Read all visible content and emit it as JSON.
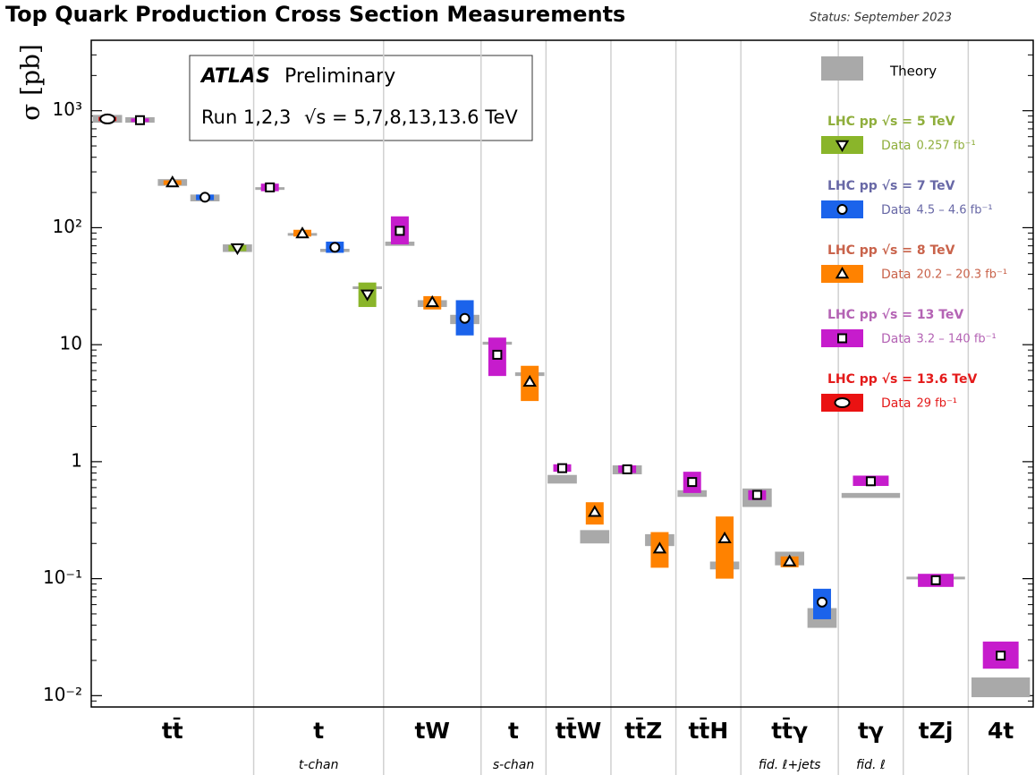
{
  "chart_data": {
    "type": "scatter",
    "title": "Top Quark Production Cross Section Measurements",
    "status": "Status: September 2023",
    "ylabel": "σ [pb]",
    "yscale": "log",
    "ylim": [
      0.008,
      4000
    ],
    "yticks": [
      {
        "value": 1000,
        "label": "10³"
      },
      {
        "value": 100,
        "label": "10²"
      },
      10,
      1,
      {
        "value": 0.1,
        "label": "10⁻¹"
      },
      {
        "value": 0.01,
        "label": "10⁻²"
      }
    ],
    "annotation": {
      "experiment": "ATLAS",
      "label": "Preliminary",
      "run": "Run 1,2,3",
      "energy": "√s = 5,7,8,13,13.6 TeV"
    },
    "theory_label": "Theory",
    "theory_color": "#a9a9a9",
    "series": [
      {
        "name": "LHC pp  √s = 5 TeV",
        "data_label": "Data",
        "lumi": "0.257 fb⁻¹",
        "color": "#8ab52a",
        "text_color": "#8fae3c",
        "marker": "triangle-down"
      },
      {
        "name": "LHC pp  √s = 7 TeV",
        "data_label": "Data",
        "lumi": "4.5 – 4.6 fb⁻¹",
        "color": "#1b63eb",
        "text_color": "#6868a6",
        "marker": "circle"
      },
      {
        "name": "LHC pp  √s = 8 TeV",
        "data_label": "Data",
        "lumi": "20.2 – 20.3 fb⁻¹",
        "color": "#ff8200",
        "text_color": "#c9634b",
        "marker": "triangle-up"
      },
      {
        "name": "LHC pp  √s = 13 TeV",
        "data_label": "Data",
        "lumi": "3.2 – 140 fb⁻¹",
        "color": "#c61ccc",
        "text_color": "#b463b4",
        "marker": "square"
      },
      {
        "name": "LHC pp  √s = 13.6 TeV",
        "data_label": "Data",
        "lumi": "29 fb⁻¹",
        "color": "#ea1212",
        "text_color": "#e41a1a",
        "marker": "ellipse"
      }
    ],
    "groups": [
      {
        "label": "tt̄",
        "points": [
          {
            "series": 4,
            "value": 850,
            "err": [
              815,
              885
            ],
            "theory": [
              790,
              920
            ]
          },
          {
            "series": 3,
            "value": 830,
            "err": [
              800,
              860
            ],
            "theory": [
              790,
              880
            ]
          },
          {
            "series": 2,
            "value": 243,
            "err": [
              232,
              254
            ],
            "theory": [
              228,
              260
            ]
          },
          {
            "series": 1,
            "value": 182,
            "err": [
              172,
              192
            ],
            "theory": [
              168,
              192
            ]
          },
          {
            "series": 0,
            "value": 67,
            "err": [
              63,
              71
            ],
            "theory": [
              62,
              72
            ]
          }
        ]
      },
      {
        "label": "t",
        "sublabel": "t-chan",
        "points": [
          {
            "series": 3,
            "value": 221,
            "err": [
              205,
              238
            ],
            "theory": [
              212,
              222
            ]
          },
          {
            "series": 2,
            "value": 89,
            "err": [
              84,
              96
            ],
            "theory": [
              86,
              90
            ]
          },
          {
            "series": 1,
            "value": 68,
            "err": [
              61,
              76
            ],
            "theory": [
              62,
              66
            ]
          },
          {
            "series": 0,
            "value": 27,
            "err": [
              21,
              34
            ],
            "theory": [
              30,
              31.5
            ]
          }
        ]
      },
      {
        "label": "tW",
        "points": [
          {
            "series": 3,
            "value": 94,
            "err": [
              72,
              125
            ],
            "theory": [
              70,
              76
            ]
          },
          {
            "series": 2,
            "value": 23,
            "err": [
              20,
              26
            ],
            "theory": [
              21,
              24
            ]
          },
          {
            "series": 1,
            "value": 16.8,
            "err": [
              12,
              24
            ],
            "theory": [
              15,
              18
            ]
          }
        ]
      },
      {
        "label": "t",
        "sublabel": "s-chan",
        "points": [
          {
            "series": 3,
            "value": 8.2,
            "err": [
              5.4,
              11.5
            ],
            "theory": [
              10,
              10.6
            ]
          },
          {
            "series": 2,
            "value": 4.8,
            "err": [
              3.3,
              6.6
            ],
            "theory": [
              5.4,
              5.8
            ]
          }
        ]
      },
      {
        "label": "tt̄W",
        "points": [
          {
            "series": 3,
            "value": 0.88,
            "err": [
              0.82,
              0.95
            ],
            "theory": [
              0.65,
              0.77
            ]
          },
          {
            "series": 2,
            "value": 0.37,
            "err": [
              0.29,
              0.45
            ],
            "theory": [
              0.2,
              0.26
            ]
          }
        ]
      },
      {
        "label": "tt̄Z",
        "points": [
          {
            "series": 3,
            "value": 0.86,
            "err": [
              0.8,
              0.93
            ],
            "theory": [
              0.78,
              0.93
            ]
          },
          {
            "series": 2,
            "value": 0.18,
            "err": [
              0.124,
              0.25
            ],
            "theory": [
              0.19,
              0.24
            ]
          }
        ]
      },
      {
        "label": "tt̄H",
        "points": [
          {
            "series": 3,
            "value": 0.67,
            "err": [
              0.54,
              0.82
            ],
            "theory": [
              0.5,
              0.57
            ]
          },
          {
            "series": 2,
            "value": 0.22,
            "err": [
              0.1,
              0.34
            ],
            "theory": [
              0.12,
              0.14
            ]
          }
        ]
      },
      {
        "label": "tt̄γ",
        "sublabel": "fid. ℓ+jets",
        "points": [
          {
            "series": 3,
            "value": 0.52,
            "err": [
              0.47,
              0.57
            ],
            "theory": [
              0.41,
              0.59
            ]
          },
          {
            "series": 2,
            "value": 0.14,
            "err": [
              0.125,
              0.155
            ],
            "theory": [
              0.13,
              0.17
            ]
          },
          {
            "series": 1,
            "value": 0.063,
            "err": [
              0.045,
              0.082
            ],
            "theory": [
              0.038,
              0.056
            ]
          }
        ]
      },
      {
        "label": "tγ",
        "sublabel": "fid. ℓ",
        "points": [
          {
            "series": 3,
            "value": 0.68,
            "err": [
              0.62,
              0.76
            ],
            "theory": [
              0.49,
              0.54
            ]
          }
        ]
      },
      {
        "label": "tZj",
        "points": [
          {
            "series": 3,
            "value": 0.097,
            "err": [
              0.085,
              0.11
            ],
            "theory": [
              0.1,
              0.104
            ]
          }
        ]
      },
      {
        "label": "4t",
        "points": [
          {
            "series": 3,
            "value": 0.022,
            "err": [
              0.017,
              0.029
            ],
            "theory": [
              0.0097,
              0.0143
            ]
          }
        ]
      }
    ]
  }
}
